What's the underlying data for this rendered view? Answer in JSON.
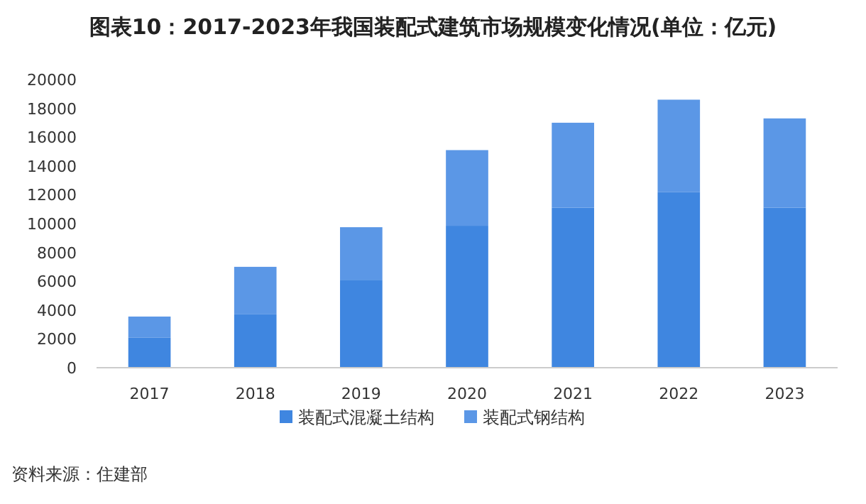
{
  "chart_data": {
    "type": "bar",
    "title": "图表10：2017-2023年我国装配式建筑市场规模变化情况(单位：亿元)",
    "categories": [
      "2017",
      "2018",
      "2019",
      "2020",
      "2021",
      "2022",
      "2023"
    ],
    "stacked": true,
    "ylim": [
      0,
      20000
    ],
    "yticks": [
      0,
      2000,
      4000,
      6000,
      8000,
      10000,
      12000,
      14000,
      16000,
      18000,
      20000
    ],
    "legend": "bottom",
    "annotations": [
      "资料来源：住建部"
    ],
    "series": [
      {
        "name": "装配式混凝土结构",
        "color": "#3f86e0",
        "values": [
          2100,
          3700,
          6100,
          9850,
          11100,
          12200,
          11100
        ]
      },
      {
        "name": "装配式钢结构",
        "color": "#5b97e6",
        "values": [
          1450,
          3300,
          3650,
          5250,
          5900,
          6400,
          6200
        ]
      }
    ]
  }
}
